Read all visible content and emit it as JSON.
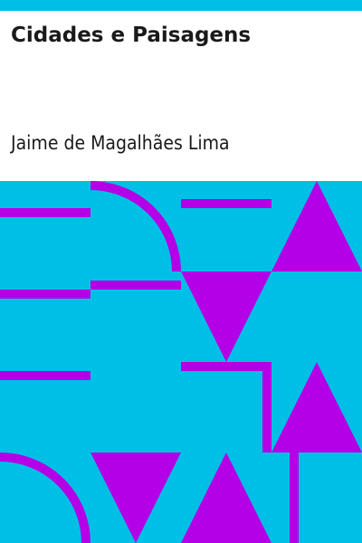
{
  "cover": {
    "title": "Cidades e Paisagens",
    "author": "Jaime de Magalhães Lima"
  },
  "colors": {
    "background": "#00bfe6",
    "shape": "#b300e6",
    "text": "#1a1a1a",
    "paper": "#ffffff"
  }
}
